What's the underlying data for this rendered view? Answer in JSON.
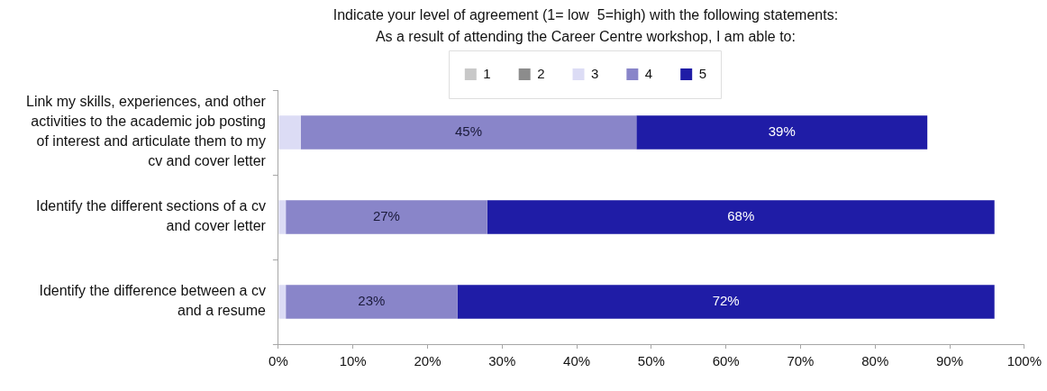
{
  "chart_data": {
    "type": "bar",
    "orientation": "horizontal",
    "stacked": true,
    "title": "Indicate your level of agreement (1= low  5=high) with the following statements:\nAs a result of attending the Career Centre workshop, I am able to:",
    "categories": [
      "Link my skills, experiences, and other activities to the academic job posting of interest and articulate them to my cv and cover letter",
      "Identify the different sections of a cv and cover letter",
      "Identify the difference between a cv and a resume"
    ],
    "series": [
      {
        "name": "1",
        "color": "#c8c8c8",
        "values": [
          0,
          0,
          0
        ]
      },
      {
        "name": "2",
        "color": "#8c8c8c",
        "values": [
          0,
          0,
          0
        ]
      },
      {
        "name": "3",
        "color": "#dcdcf5",
        "values": [
          3,
          1,
          1
        ]
      },
      {
        "name": "4",
        "color": "#8985c9",
        "values": [
          45,
          27,
          23
        ],
        "value_labels": [
          "45%",
          "27%",
          "23%"
        ]
      },
      {
        "name": "5",
        "color": "#1f1ca6",
        "values": [
          39,
          68,
          72
        ],
        "value_labels": [
          "39%",
          "68%",
          "72%"
        ]
      }
    ],
    "xlim": [
      0,
      100
    ],
    "xticks": [
      {
        "value": 0,
        "label": "0%"
      },
      {
        "value": 10,
        "label": "10%"
      },
      {
        "value": 20,
        "label": "20%"
      },
      {
        "value": 30,
        "label": "30%"
      },
      {
        "value": 40,
        "label": "40%"
      },
      {
        "value": 50,
        "label": "50%"
      },
      {
        "value": 60,
        "label": "60%"
      },
      {
        "value": 70,
        "label": "70%"
      },
      {
        "value": 80,
        "label": "80%"
      },
      {
        "value": 90,
        "label": "90%"
      },
      {
        "value": 100,
        "label": "100%"
      }
    ],
    "legend": "top"
  }
}
